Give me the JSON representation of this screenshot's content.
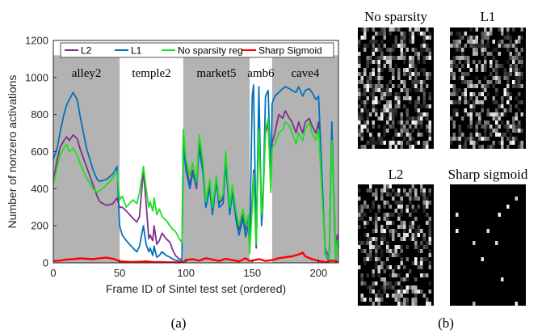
{
  "chart_data": [
    {
      "panel": "(a)",
      "type": "line",
      "xlabel": "Frame ID of Sintel test set (ordered)",
      "ylabel": "Number of nonzero activations",
      "xlim": [
        0,
        215
      ],
      "ylim": [
        0,
        1200
      ],
      "xticks": [
        0,
        50,
        100,
        150,
        200
      ],
      "yticks": [
        0,
        200,
        400,
        600,
        800,
        1000,
        1200
      ],
      "grid": false,
      "legend_position": "top",
      "shaded_regions": [
        {
          "label": "alley2",
          "x": [
            0,
            50
          ],
          "shaded": true
        },
        {
          "label": "temple2",
          "x": [
            50,
            98
          ],
          "shaded": false
        },
        {
          "label": "market5",
          "x": [
            98,
            148
          ],
          "shaded": true
        },
        {
          "label": "amb6",
          "x": [
            148,
            165
          ],
          "shaded": false
        },
        {
          "label": "cave4",
          "x": [
            165,
            215
          ],
          "shaded": true
        }
      ],
      "series": [
        {
          "name": "L2",
          "color": "#7e2f8e",
          "x": [
            0,
            3,
            5,
            8,
            10,
            12,
            15,
            18,
            20,
            25,
            30,
            33,
            35,
            40,
            45,
            48,
            50,
            52,
            55,
            60,
            63,
            65,
            68,
            70,
            72,
            73,
            75,
            76,
            78,
            80,
            82,
            85,
            88,
            90,
            92,
            95,
            97,
            98,
            100,
            103,
            105,
            108,
            110,
            113,
            115,
            118,
            120,
            123,
            125,
            128,
            130,
            133,
            135,
            138,
            140,
            143,
            145,
            147,
            148,
            150,
            151,
            153,
            155,
            157,
            158,
            160,
            162,
            164,
            165,
            167,
            170,
            173,
            175,
            178,
            180,
            183,
            185,
            188,
            190,
            193,
            195,
            198,
            200,
            203,
            205,
            207,
            208,
            210,
            212,
            213,
            214,
            215
          ],
          "y": [
            440,
            560,
            620,
            660,
            680,
            660,
            690,
            670,
            620,
            520,
            420,
            360,
            330,
            310,
            320,
            350,
            300,
            300,
            280,
            240,
            220,
            250,
            500,
            320,
            130,
            150,
            120,
            200,
            100,
            120,
            160,
            130,
            110,
            70,
            40,
            20,
            20,
            680,
            520,
            420,
            500,
            400,
            650,
            500,
            300,
            420,
            280,
            460,
            320,
            350,
            580,
            280,
            400,
            250,
            180,
            260,
            180,
            250,
            120,
            350,
            500,
            80,
            800,
            300,
            350,
            700,
            750,
            400,
            650,
            700,
            800,
            780,
            820,
            780,
            760,
            700,
            760,
            700,
            760,
            780,
            740,
            700,
            760,
            350,
            80,
            40,
            20,
            700,
            280,
            20,
            150,
            100
          ]
        },
        {
          "name": "L1",
          "color": "#0072bd",
          "x": [
            0,
            3,
            5,
            8,
            10,
            12,
            15,
            18,
            20,
            25,
            30,
            33,
            35,
            40,
            45,
            48,
            50,
            52,
            55,
            60,
            63,
            65,
            68,
            70,
            72,
            73,
            75,
            76,
            78,
            80,
            82,
            85,
            88,
            90,
            92,
            95,
            97,
            98,
            100,
            103,
            105,
            108,
            110,
            113,
            115,
            118,
            120,
            123,
            125,
            128,
            130,
            133,
            135,
            138,
            140,
            143,
            145,
            147,
            148,
            150,
            151,
            153,
            155,
            157,
            158,
            160,
            162,
            164,
            165,
            167,
            170,
            173,
            175,
            178,
            180,
            183,
            185,
            188,
            190,
            193,
            195,
            198,
            200,
            203,
            205,
            207,
            208,
            210,
            212,
            213,
            214,
            215
          ],
          "y": [
            560,
            620,
            700,
            800,
            850,
            880,
            920,
            880,
            800,
            620,
            500,
            450,
            440,
            450,
            480,
            520,
            200,
            150,
            120,
            80,
            60,
            90,
            200,
            100,
            60,
            80,
            40,
            90,
            30,
            40,
            60,
            40,
            30,
            20,
            15,
            10,
            10,
            640,
            500,
            400,
            480,
            420,
            620,
            480,
            300,
            400,
            260,
            440,
            300,
            320,
            540,
            260,
            380,
            220,
            150,
            240,
            140,
            200,
            80,
            900,
            960,
            100,
            950,
            200,
            300,
            900,
            930,
            450,
            860,
            900,
            920,
            940,
            950,
            940,
            930,
            920,
            950,
            900,
            930,
            940,
            920,
            880,
            900,
            400,
            50,
            20,
            10,
            760,
            200,
            10,
            120,
            80
          ]
        },
        {
          "name": "No sparsity reg",
          "color": "#1ee01e",
          "x": [
            0,
            3,
            5,
            8,
            10,
            12,
            15,
            18,
            20,
            25,
            30,
            33,
            35,
            40,
            45,
            48,
            50,
            52,
            55,
            60,
            63,
            65,
            68,
            70,
            72,
            73,
            75,
            76,
            78,
            80,
            82,
            85,
            88,
            90,
            92,
            95,
            97,
            98,
            100,
            103,
            105,
            108,
            110,
            113,
            115,
            118,
            120,
            123,
            125,
            128,
            130,
            133,
            135,
            138,
            140,
            143,
            145,
            147,
            148,
            150,
            151,
            153,
            155,
            157,
            158,
            160,
            162,
            164,
            165,
            167,
            170,
            173,
            175,
            178,
            180,
            183,
            185,
            188,
            190,
            193,
            195,
            198,
            200,
            203,
            205,
            207,
            208,
            210,
            212,
            213,
            214,
            215
          ],
          "y": [
            420,
            520,
            580,
            620,
            640,
            600,
            620,
            580,
            540,
            460,
            400,
            380,
            390,
            420,
            460,
            490,
            340,
            360,
            300,
            340,
            320,
            380,
            520,
            400,
            300,
            330,
            280,
            350,
            260,
            290,
            250,
            230,
            200,
            180,
            170,
            130,
            110,
            720,
            560,
            470,
            540,
            440,
            690,
            540,
            330,
            450,
            300,
            470,
            340,
            370,
            600,
            300,
            420,
            270,
            200,
            290,
            200,
            260,
            50,
            300,
            480,
            100,
            720,
            260,
            300,
            720,
            780,
            380,
            620,
            640,
            700,
            720,
            760,
            740,
            700,
            640,
            700,
            660,
            720,
            760,
            700,
            660,
            720,
            320,
            60,
            30,
            20,
            660,
            250,
            20,
            120,
            80
          ]
        },
        {
          "name": "Sharp Sigmoid",
          "color": "#ff0000",
          "x": [
            0,
            5,
            10,
            15,
            20,
            25,
            30,
            35,
            40,
            45,
            48,
            50,
            55,
            60,
            65,
            70,
            75,
            80,
            85,
            90,
            95,
            98,
            100,
            105,
            110,
            115,
            120,
            125,
            130,
            135,
            140,
            145,
            148,
            150,
            155,
            160,
            165,
            170,
            175,
            180,
            185,
            188,
            190,
            195,
            200,
            205,
            208,
            210,
            215
          ],
          "y": [
            10,
            12,
            18,
            20,
            24,
            22,
            20,
            25,
            28,
            22,
            15,
            8,
            6,
            5,
            6,
            8,
            5,
            4,
            3,
            3,
            2,
            5,
            15,
            20,
            12,
            25,
            18,
            10,
            22,
            15,
            8,
            25,
            10,
            12,
            20,
            10,
            15,
            25,
            30,
            35,
            45,
            55,
            35,
            20,
            10,
            5,
            8,
            12,
            5
          ]
        }
      ]
    },
    {
      "panel": "(b)",
      "type": "heatmap",
      "grids": [
        {
          "title": "No sparsity",
          "density": 0.55,
          "seed": 11
        },
        {
          "title": "L1",
          "density": 0.5,
          "seed": 23
        },
        {
          "title": "L2",
          "density": 0.45,
          "seed": 37
        },
        {
          "title": "Sharp sigmoid",
          "density": 0.02,
          "seed": 51
        }
      ]
    }
  ],
  "captions": {
    "a": "(a)",
    "b": "(b)"
  }
}
